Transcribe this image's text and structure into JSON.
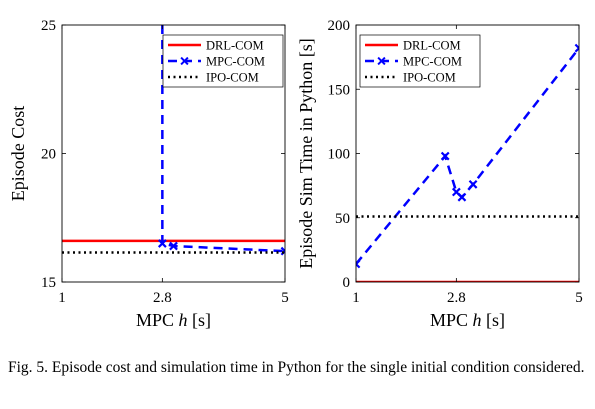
{
  "caption": "Fig. 5.   Episode cost and simulation time in Python for the single initial condition considered.",
  "colors": {
    "drl": "#ff0000",
    "mpc": "#0000ff",
    "ipo": "#000000"
  },
  "chart_data": [
    {
      "type": "line",
      "title": "",
      "xlabel_prefix": "MPC ",
      "xlabel_var": "h",
      "xlabel_suffix": " [s]",
      "ylabel": "Episode Cost",
      "xlim": [
        1,
        5
      ],
      "ylim": [
        15,
        25
      ],
      "xticks": [
        1,
        2.8,
        5
      ],
      "xtick_labels": [
        "1",
        "2.8",
        "5"
      ],
      "yticks": [
        15,
        20,
        25
      ],
      "ytick_labels": [
        "15",
        "20",
        "25"
      ],
      "grid": false,
      "legend": "top-right",
      "series": [
        {
          "name": "DRL-COM",
          "style": "solid",
          "x": [
            1,
            5
          ],
          "y": [
            16.6,
            16.6
          ]
        },
        {
          "name": "MPC-COM",
          "style": "dashed-x",
          "x": [
            2.8,
            2.8,
            3.0,
            5.0
          ],
          "y": [
            25,
            16.5,
            16.4,
            16.2
          ],
          "markers": [
            false,
            true,
            true,
            true
          ]
        },
        {
          "name": "IPO-COM",
          "style": "dotted",
          "x": [
            1,
            5
          ],
          "y": [
            16.15,
            16.15
          ]
        }
      ]
    },
    {
      "type": "line",
      "title": "",
      "xlabel_prefix": "MPC ",
      "xlabel_var": "h",
      "xlabel_suffix": " [s]",
      "ylabel": "Episode Sim Time in Python [s]",
      "xlim": [
        1,
        5
      ],
      "ylim": [
        0,
        200
      ],
      "xticks": [
        1,
        2.8,
        5
      ],
      "xtick_labels": [
        "1",
        "2.8",
        "5"
      ],
      "yticks": [
        0,
        50,
        100,
        150,
        200
      ],
      "ytick_labels": [
        "0",
        "50",
        "100",
        "150",
        "200"
      ],
      "grid": false,
      "legend": "top-left",
      "series": [
        {
          "name": "DRL-COM",
          "style": "solid",
          "x": [
            1,
            5
          ],
          "y": [
            0,
            0
          ]
        },
        {
          "name": "MPC-COM",
          "style": "dashed-x",
          "x": [
            1,
            2.6,
            2.8,
            2.9,
            3.1,
            5
          ],
          "y": [
            14,
            98,
            70,
            66,
            76,
            182
          ],
          "markers": [
            true,
            true,
            true,
            true,
            true,
            true
          ]
        },
        {
          "name": "IPO-COM",
          "style": "dotted",
          "x": [
            1,
            5
          ],
          "y": [
            51,
            51
          ]
        }
      ]
    }
  ]
}
